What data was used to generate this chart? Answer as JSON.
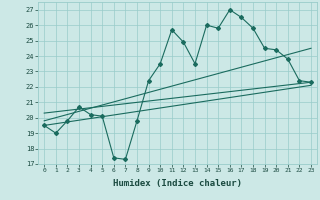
{
  "xlabel": "Humidex (Indice chaleur)",
  "bg_color": "#cce8e6",
  "grid_color": "#99ccca",
  "line_color": "#1a6b5e",
  "xlim": [
    -0.5,
    23.5
  ],
  "ylim": [
    17,
    27.5
  ],
  "yticks": [
    17,
    18,
    19,
    20,
    21,
    22,
    23,
    24,
    25,
    26,
    27
  ],
  "xticks": [
    0,
    1,
    2,
    3,
    4,
    5,
    6,
    7,
    8,
    9,
    10,
    11,
    12,
    13,
    14,
    15,
    16,
    17,
    18,
    19,
    20,
    21,
    22,
    23
  ],
  "series1_x": [
    0,
    1,
    2,
    3,
    4,
    5,
    6,
    7,
    8,
    9,
    10,
    11,
    12,
    13,
    14,
    15,
    16,
    17,
    18,
    19,
    20,
    21,
    22,
    23
  ],
  "series1_y": [
    19.5,
    19.0,
    19.8,
    20.7,
    20.2,
    20.1,
    17.4,
    17.3,
    19.8,
    22.4,
    23.5,
    25.7,
    24.9,
    23.5,
    26.0,
    25.8,
    27.0,
    26.5,
    25.8,
    24.5,
    24.4,
    23.8,
    22.4,
    22.3
  ],
  "trend1_x": [
    0,
    23
  ],
  "trend1_y": [
    19.8,
    24.5
  ],
  "trend2_x": [
    0,
    23
  ],
  "trend2_y": [
    20.3,
    22.3
  ],
  "trend3_x": [
    0,
    23
  ],
  "trend3_y": [
    19.5,
    22.1
  ]
}
